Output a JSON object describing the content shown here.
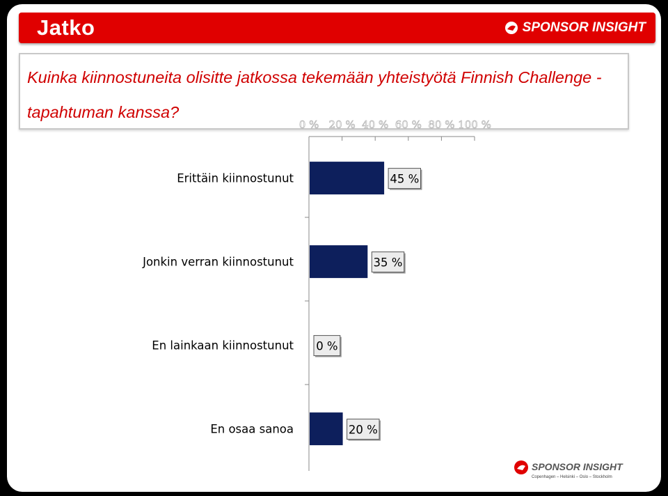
{
  "header": {
    "title": "Jatko",
    "brand": "SPONSOR INSIGHT"
  },
  "question": "Kuinka kiinnostuneita olisitte jatkossa tekemään yhteistyötä Finnish Challenge -tapahtuman kanssa?",
  "footer": {
    "brand": "SPONSOR INSIGHT",
    "cities": "Copenhagen – Helsinki – Oslo – Stockholm"
  },
  "colors": {
    "header": "#e00000",
    "bar": "#0d1f5c",
    "question": "#d00000"
  },
  "chart_data": {
    "type": "bar",
    "orientation": "horizontal",
    "categories": [
      "Erittäin kiinnostunut",
      "Jonkin verran kiinnostunut",
      "En lainkaan kiinnostunut",
      "En osaa sanoa"
    ],
    "values": [
      45,
      35,
      0,
      20
    ],
    "value_labels": [
      "45 %",
      "35 %",
      "0 %",
      "20 %"
    ],
    "xticks": [
      "0 %",
      "20 %",
      "40 %",
      "60 %",
      "80 %",
      "100 %"
    ],
    "xlim": [
      0,
      100
    ],
    "grid": false,
    "legend": "none"
  }
}
